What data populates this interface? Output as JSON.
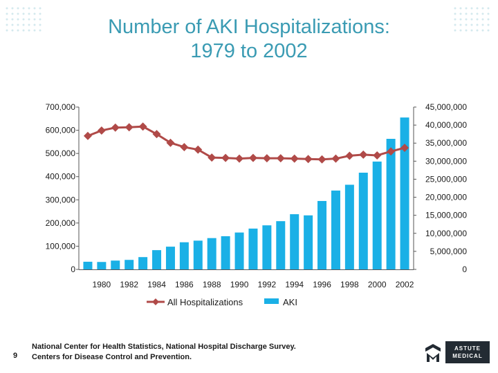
{
  "title": {
    "line1": "Number of AKI Hospitalizations:",
    "line2": "1979 to 2002"
  },
  "slide_number": "9",
  "source": {
    "line1": "National Center for Health Statistics, National Hospital Discharge Survey.",
    "line2": "Centers for Disease Control and Prevention."
  },
  "logo": {
    "line1": "ASTUTE",
    "line2": "MEDICAL"
  },
  "colors": {
    "title": "#3a9bb3",
    "line": "#b04a48",
    "bar": "#1ab0e6"
  },
  "chart_data": {
    "type": "bar+line",
    "categories": [
      1979,
      1980,
      1981,
      1982,
      1983,
      1984,
      1985,
      1986,
      1987,
      1988,
      1989,
      1990,
      1991,
      1992,
      1993,
      1994,
      1995,
      1996,
      1997,
      1998,
      1999,
      2000,
      2001,
      2002
    ],
    "x_tick_labels": [
      "1980",
      "1982",
      "1984",
      "1986",
      "1988",
      "1990",
      "1992",
      "1994",
      "1996",
      "1998",
      "2000",
      "2002"
    ],
    "series": [
      {
        "name": "All Hospitalizations",
        "kind": "line",
        "axis": "right",
        "values": [
          37000000,
          38500000,
          39300000,
          39400000,
          39600000,
          37500000,
          35100000,
          33900000,
          33200000,
          31000000,
          30900000,
          30700000,
          30900000,
          30800000,
          30800000,
          30700000,
          30600000,
          30500000,
          30700000,
          31500000,
          31800000,
          31600000,
          32700000,
          33700000
        ]
      },
      {
        "name": "AKI",
        "kind": "bar",
        "axis": "left",
        "values": [
          33000,
          32000,
          38000,
          41000,
          53000,
          83000,
          98000,
          117000,
          124000,
          135000,
          143000,
          159000,
          176000,
          190000,
          208000,
          238000,
          233000,
          295000,
          340000,
          365000,
          417000,
          465000,
          563000,
          655000
        ]
      }
    ],
    "left_axis": {
      "min": 0,
      "max": 700000,
      "ticks": [
        0,
        100000,
        200000,
        300000,
        400000,
        500000,
        600000,
        700000
      ],
      "tick_labels": [
        "0",
        "100,000",
        "200,000",
        "300,000",
        "400,000",
        "500,000",
        "600,000",
        "700,000"
      ]
    },
    "right_axis": {
      "min": 0,
      "max": 45000000,
      "ticks": [
        0,
        5000000,
        10000000,
        15000000,
        20000000,
        25000000,
        30000000,
        35000000,
        40000000,
        45000000
      ],
      "tick_labels": [
        "0",
        "5,000,000",
        "10,000,000",
        "15,000,000",
        "20,000,000",
        "25,000,000",
        "30,000,000",
        "35,000,000",
        "40,000,000",
        "45,000,000"
      ]
    },
    "legend": {
      "position": "bottom",
      "items": [
        "All Hospitalizations",
        "AKI"
      ]
    }
  }
}
